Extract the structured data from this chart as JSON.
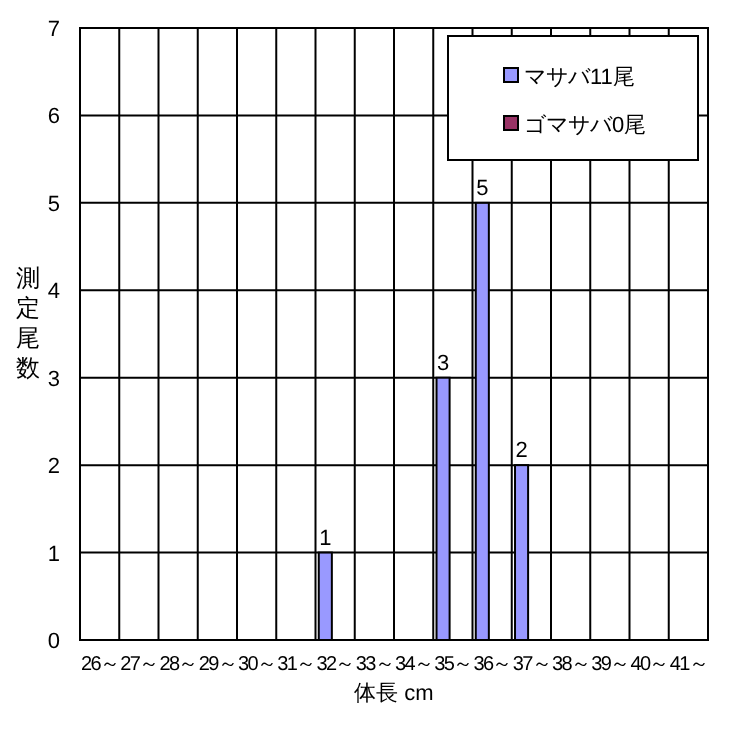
{
  "chart_data": {
    "type": "bar",
    "xlabel": "体長 cm",
    "ylabel": "測定尾数",
    "categories": [
      "26～",
      "27～",
      "28～",
      "29～",
      "30～",
      "31～",
      "32～",
      "33～",
      "34～",
      "35～",
      "36～",
      "37～",
      "38～",
      "39～",
      "40～",
      "41～"
    ],
    "series": [
      {
        "name": "マサバ11尾",
        "color": "#9999ff",
        "values": [
          0,
          0,
          0,
          0,
          0,
          0,
          1,
          0,
          0,
          3,
          5,
          2,
          0,
          0,
          0,
          0
        ],
        "value_labels": [
          null,
          null,
          null,
          null,
          null,
          null,
          "1",
          null,
          null,
          "3",
          "5",
          "2",
          null,
          null,
          null,
          null
        ]
      },
      {
        "name": "ゴマサバ0尾",
        "color": "#993366",
        "values": [
          0,
          0,
          0,
          0,
          0,
          0,
          0,
          0,
          0,
          0,
          0,
          0,
          0,
          0,
          0,
          0
        ]
      }
    ],
    "ylim": [
      0,
      7
    ],
    "yticks": [
      0,
      1,
      2,
      3,
      4,
      5,
      6,
      7
    ],
    "grid": true,
    "legend": "top right"
  }
}
